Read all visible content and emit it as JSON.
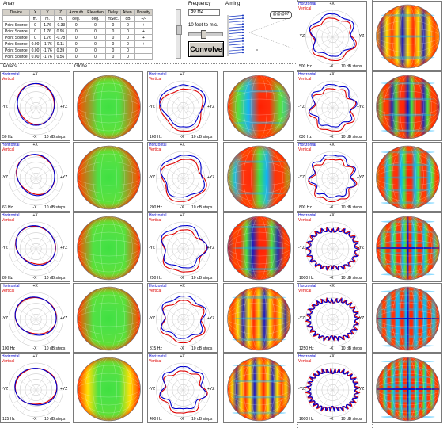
{
  "array": {
    "title": "Array",
    "columns": [
      "Device",
      "X",
      "Y",
      "Z",
      "Azimuth",
      "Elevation",
      "Delay",
      "Atten.",
      "Polarity"
    ],
    "units": [
      "",
      "m.",
      "m.",
      "m.",
      "deg.",
      "deg.",
      "mSec.",
      "dB",
      "+/-"
    ],
    "rows": [
      [
        "Point Source",
        "0",
        "1.76",
        "-0.33",
        "0",
        "0",
        "0",
        "0",
        "+"
      ],
      [
        "Point Source",
        "0",
        "1.76",
        "0.95",
        "0",
        "0",
        "0",
        "0",
        "+"
      ],
      [
        "Point Source",
        "0",
        "1.76",
        "-0.78",
        "0",
        "0",
        "0",
        "0",
        "+"
      ],
      [
        "Point Source",
        "0.00",
        "-1.76",
        "0.11",
        "0",
        "0",
        "0",
        "0",
        "+"
      ],
      [
        "Point Source",
        "0.00",
        "-1.76",
        "0.39",
        "0",
        "0",
        "0",
        "0",
        ""
      ],
      [
        "Point Source",
        "0.00",
        "-1.76",
        "0.56",
        "0",
        "0",
        "0",
        "0",
        ""
      ]
    ]
  },
  "frequency": {
    "label": "Frequency",
    "value": "50 Hz",
    "near_label": "10 feet to mic.",
    "convolve_label": "Convolve"
  },
  "aiming": {
    "label": "Aiming",
    "tag": "@@@07"
  },
  "section_labels": {
    "polars": "Polars",
    "globe": "Globe"
  },
  "polar_labels": {
    "horizontal": "Horizontal",
    "vertical": "Vertical",
    "top": "+X",
    "bottom": "-X",
    "left": "-YZ",
    "right": "+YZ",
    "steps": "10 dB steps"
  },
  "colors": {
    "horizontal": "#0000cc",
    "vertical": "#dd0000",
    "globe_hot": "#ff2000",
    "globe_warm": "#ffe000",
    "globe_mid": "#40e040",
    "globe_cool": "#00b0ff",
    "globe_cold": "#1010c0"
  },
  "polars": [
    {
      "freq": "50 Hz",
      "kind": "broad",
      "n": 1
    },
    {
      "freq": "63 Hz",
      "kind": "broad",
      "n": 1
    },
    {
      "freq": "80 Hz",
      "kind": "broad",
      "n": 2
    },
    {
      "freq": "100 Hz",
      "kind": "broad",
      "n": 2
    },
    {
      "freq": "125 Hz",
      "kind": "broad",
      "n": 3
    },
    {
      "freq": "160 Hz",
      "kind": "lobed",
      "n": 3
    },
    {
      "freq": "200 Hz",
      "kind": "lobed",
      "n": 4
    },
    {
      "freq": "250 Hz",
      "kind": "lobed",
      "n": 5
    },
    {
      "freq": "315 Hz",
      "kind": "lobed",
      "n": 6
    },
    {
      "freq": "400 Hz",
      "kind": "lobed",
      "n": 7
    },
    {
      "freq": "500 Hz",
      "kind": "lobed",
      "n": 6
    },
    {
      "freq": "630 Hz",
      "kind": "lobed",
      "n": 8
    },
    {
      "freq": "800 Hz",
      "kind": "lobed",
      "n": 9
    },
    {
      "freq": "1000 Hz",
      "kind": "spiky",
      "n": 12
    },
    {
      "freq": "1250 Hz",
      "kind": "spiky",
      "n": 14
    },
    {
      "freq": "1600 Hz",
      "kind": "spiky",
      "n": 16
    }
  ]
}
